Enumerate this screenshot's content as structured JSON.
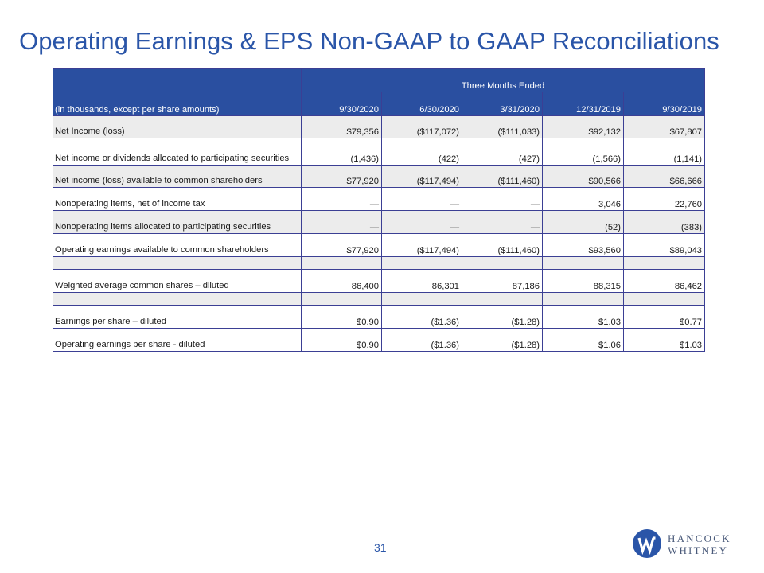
{
  "title": "Operating Earnings & EPS Non-GAAP to GAAP Reconciliations",
  "table": {
    "period_header": "Three Months Ended",
    "label_header": "(in thousands, except per share amounts)",
    "columns": [
      "9/30/2020",
      "6/30/2020",
      "3/31/2020",
      "12/31/2019",
      "9/30/2019"
    ],
    "rows": [
      {
        "label": "Net Income (loss)",
        "values": [
          "$79,356",
          "($117,072)",
          "($111,033)",
          "$92,132",
          "$67,807"
        ]
      },
      {
        "label": "Net income or dividends allocated to participating securities",
        "values": [
          "(1,436)",
          "(422)",
          "(427)",
          "(1,566)",
          "(1,141)"
        ]
      },
      {
        "label": "Net income (loss) available to common shareholders",
        "values": [
          "$77,920",
          "($117,494)",
          "($111,460)",
          "$90,566",
          "$66,666"
        ]
      },
      {
        "label": "Nonoperating items, net of income tax",
        "values": [
          "—",
          "—",
          "—",
          "3,046",
          "22,760"
        ]
      },
      {
        "label": "Nonoperating items allocated to participating securities",
        "values": [
          "—",
          "—",
          "—",
          "(52)",
          "(383)"
        ]
      },
      {
        "label": "Operating earnings available to common shareholders",
        "values": [
          "$77,920",
          "($117,494)",
          "($111,460)",
          "$93,560",
          "$89,043"
        ]
      },
      {
        "label": "Weighted average common shares – diluted",
        "values": [
          "86,400",
          "86,301",
          "87,186",
          "88,315",
          "86,462"
        ]
      },
      {
        "label": "Earnings per share – diluted",
        "values": [
          "$0.90",
          "($1.36)",
          "($1.28)",
          "$1.03",
          "$0.77"
        ]
      },
      {
        "label": "Operating earnings per share - diluted",
        "values": [
          "$0.90",
          "($1.36)",
          "($1.28)",
          "$1.06",
          "$1.03"
        ]
      }
    ]
  },
  "page_number": "31",
  "logo": {
    "line1": "HANCOCK",
    "line2": "WHITNEY",
    "icon": "hancock-whitney-logo-icon"
  },
  "colors": {
    "title": "#2a55a8",
    "header_bg": "#2a4fa0",
    "row_shade": "#ececec",
    "border": "#3b3f94"
  }
}
